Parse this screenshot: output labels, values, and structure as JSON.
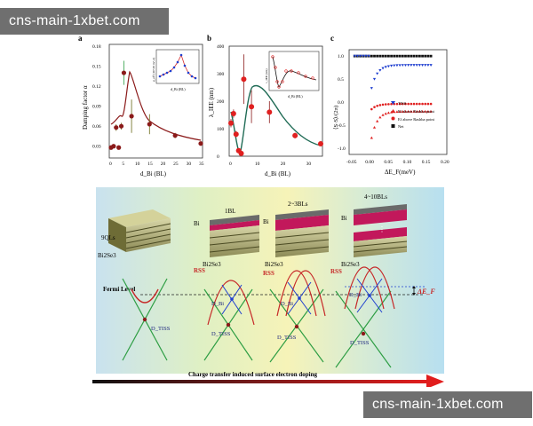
{
  "watermark_top": "cns-main-1xbet.com",
  "watermark_bottom": "cns-main-1xbet.com",
  "panels": {
    "a": {
      "label": "a",
      "ylabel": "Damping factor α",
      "xlabel": "d_Bi (BL)",
      "inset_ylabel": "g_eff (10^19 m^-2)",
      "inset_xlabel": "d_Bi (BL)"
    },
    "b": {
      "label": "b",
      "ylabel": "λ_IEE (nm)",
      "xlabel": "d_Bi (BL)",
      "inset_ylabel": "λ_IEE (nm)",
      "inset_xlabel": "d_Bi (BL)"
    },
    "c": {
      "label": "c",
      "ylabel": "⟨S·S⟩/(2π)",
      "xlabel": "ΔE_F(meV)",
      "legend": [
        "TISS",
        "Ef above Rashba point",
        "Ef above Rashba point",
        "Net"
      ]
    }
  },
  "schematic": {
    "stacks": [
      "9QLs",
      "1BL",
      "2~3BLs",
      "4~10BLs"
    ],
    "material_top": "Bi",
    "material_sub": "Bi2Se3",
    "fermi_label": "Fermi Level",
    "rss": "RSS",
    "d_tiss": "D_TISS",
    "d_bi": "D_Bi",
    "delta_ef": "ΔE_F",
    "caption": "Charge transfer induced surface electron doping"
  },
  "chart_data": [
    {
      "type": "scatter",
      "title": "",
      "xlabel": "d_Bi (BL)",
      "ylabel": "Damping factor α",
      "xlim": [
        0,
        35
      ],
      "ylim": [
        0.015,
        0.18
      ],
      "xticks": [
        0,
        5,
        10,
        15,
        20,
        25,
        30,
        35
      ],
      "yticks": [
        0.03,
        0.06,
        0.09,
        0.12,
        0.15,
        0.18
      ],
      "series": [
        {
          "x": [
            0,
            1,
            2,
            3,
            4,
            5,
            8,
            15,
            25,
            35
          ],
          "y": [
            0.028,
            0.03,
            0.058,
            0.028,
            0.06,
            0.14,
            0.075,
            0.063,
            0.046,
            0.034
          ],
          "err": [
            0.003,
            0.003,
            0.005,
            0.003,
            0.005,
            0.018,
            0.025,
            0.015,
            0.004,
            0.003
          ]
        }
      ]
    },
    {
      "type": "scatter",
      "title": "",
      "xlabel": "d_Bi (BL)",
      "ylabel": "λ_IEE (nm)",
      "xlim": [
        0,
        35
      ],
      "ylim": [
        0,
        400
      ],
      "xticks": [
        0,
        10,
        20,
        30
      ],
      "yticks": [
        0,
        100,
        200,
        300,
        400
      ],
      "series": [
        {
          "x": [
            0,
            1,
            2,
            3,
            4,
            5,
            8,
            15,
            25,
            35
          ],
          "y": [
            120,
            155,
            80,
            20,
            10,
            280,
            180,
            160,
            75,
            45
          ],
          "err": [
            15,
            15,
            12,
            5,
            5,
            90,
            60,
            40,
            10,
            8
          ]
        }
      ]
    },
    {
      "type": "scatter",
      "title": "",
      "xlabel": "ΔE_F(meV)",
      "ylabel": "⟨S·S⟩/(2π)",
      "xlim": [
        -0.05,
        0.2
      ],
      "ylim": [
        -1.1,
        1.1
      ],
      "xticks": [
        -0.05,
        0.0,
        0.05,
        0.1,
        0.15,
        0.2
      ],
      "yticks": [
        -1.0,
        -0.5,
        0.0,
        0.5,
        1.0
      ],
      "series": [
        {
          "name": "TISS",
          "shape": "triangle-down",
          "color": "#1f3fd0"
        },
        {
          "name": "Ef above Rashba point",
          "shape": "triangle-up",
          "color": "#e02020"
        },
        {
          "name": "Ef above Rashba point",
          "shape": "dot",
          "color": "#e02020"
        },
        {
          "name": "Net",
          "shape": "square",
          "color": "#111111"
        }
      ]
    }
  ]
}
